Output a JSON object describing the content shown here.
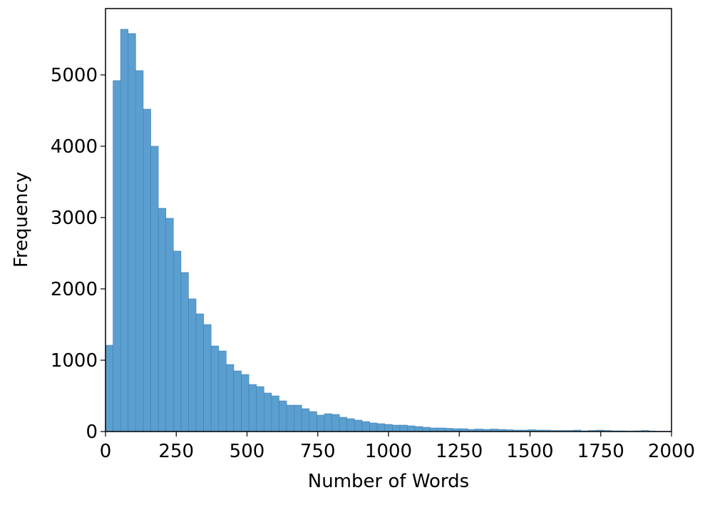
{
  "chart_data": {
    "type": "histogram",
    "x_label": "Number of Words",
    "y_label": "Frequency",
    "bins": [
      0,
      26.67,
      53.33,
      80,
      106.67,
      133.33,
      160,
      186.67,
      213.33,
      240,
      266.67,
      293.33,
      320,
      346.67,
      373.33,
      400,
      426.67,
      453.33,
      480,
      506.67,
      533.33,
      560,
      586.67,
      613.33,
      640,
      666.67,
      693.33,
      720,
      746.67,
      773.33,
      800,
      826.67,
      853.33,
      880,
      906.67,
      933.33,
      960,
      986.67,
      1013.33,
      1040,
      1066.67,
      1093.33,
      1120,
      1146.67,
      1173.33,
      1200,
      1226.67,
      1253.33,
      1280,
      1306.67,
      1333.33,
      1360,
      1386.67,
      1413.33,
      1440,
      1466.67,
      1493.33,
      1520,
      1546.67,
      1573.33,
      1600,
      1626.67,
      1653.33,
      1680,
      1706.67,
      1733.33,
      1760,
      1786.67,
      1813.33,
      1840,
      1866.67,
      1893.33,
      1920,
      1946.67,
      1973.33,
      2000
    ],
    "values": [
      1210,
      4920,
      5640,
      5580,
      5060,
      4520,
      4000,
      3130,
      2990,
      2530,
      2230,
      1860,
      1650,
      1500,
      1200,
      1130,
      940,
      850,
      800,
      660,
      630,
      540,
      500,
      430,
      370,
      370,
      320,
      280,
      230,
      250,
      240,
      200,
      180,
      160,
      140,
      120,
      110,
      100,
      90,
      90,
      80,
      70,
      60,
      50,
      50,
      45,
      40,
      40,
      30,
      35,
      30,
      35,
      30,
      25,
      20,
      20,
      25,
      20,
      20,
      15,
      15,
      15,
      20,
      10,
      15,
      20,
      15,
      10,
      10,
      8,
      10,
      15,
      8,
      5,
      5
    ],
    "color": "#5a9fcf",
    "edge_color": "#3f7eb3",
    "xlim": [
      0,
      2000
    ],
    "xticks": [
      0,
      250,
      500,
      750,
      1000,
      1250,
      1500,
      1750,
      2000
    ],
    "ylim": [
      0,
      5930
    ],
    "yticks": [
      0,
      1000,
      2000,
      3000,
      4000,
      5000
    ]
  }
}
